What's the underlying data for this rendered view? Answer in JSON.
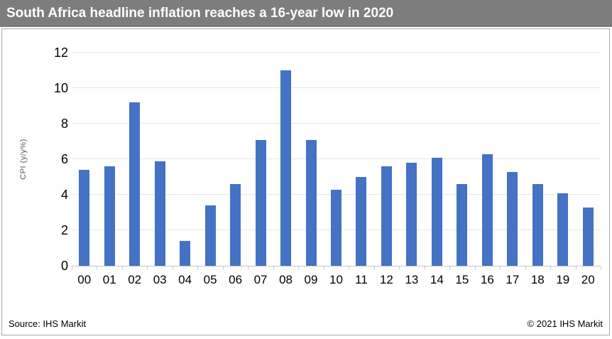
{
  "header": {
    "title": "South Africa headline inflation reaches a 16-year low in 2020"
  },
  "footer": {
    "source": "Source: IHS Markit",
    "copyright": "© 2021 IHS Markit"
  },
  "colors": {
    "bar": "#4472C4",
    "header_bg": "#7D7D7D",
    "gridline": "#E8E8E8",
    "axis_line": "#C6C6C6",
    "y_axis_title_text": "#595959"
  },
  "chart_data": {
    "type": "bar",
    "title": "South Africa headline inflation reaches a 16-year low in 2020",
    "categories": [
      "00",
      "01",
      "02",
      "03",
      "04",
      "05",
      "06",
      "07",
      "08",
      "09",
      "10",
      "11",
      "12",
      "13",
      "14",
      "15",
      "16",
      "17",
      "18",
      "19",
      "20"
    ],
    "values": [
      5.4,
      5.6,
      9.2,
      5.9,
      1.4,
      3.4,
      4.6,
      7.1,
      11.0,
      7.1,
      4.3,
      5.0,
      5.6,
      5.8,
      6.1,
      4.6,
      6.3,
      5.3,
      4.6,
      4.1,
      3.3
    ],
    "xlabel": "",
    "ylabel": "CPI (y/y%)",
    "ylim": [
      0,
      12
    ],
    "y_ticks": [
      0,
      2,
      4,
      6,
      8,
      10,
      12
    ],
    "grid": true,
    "legend_position": "none"
  }
}
